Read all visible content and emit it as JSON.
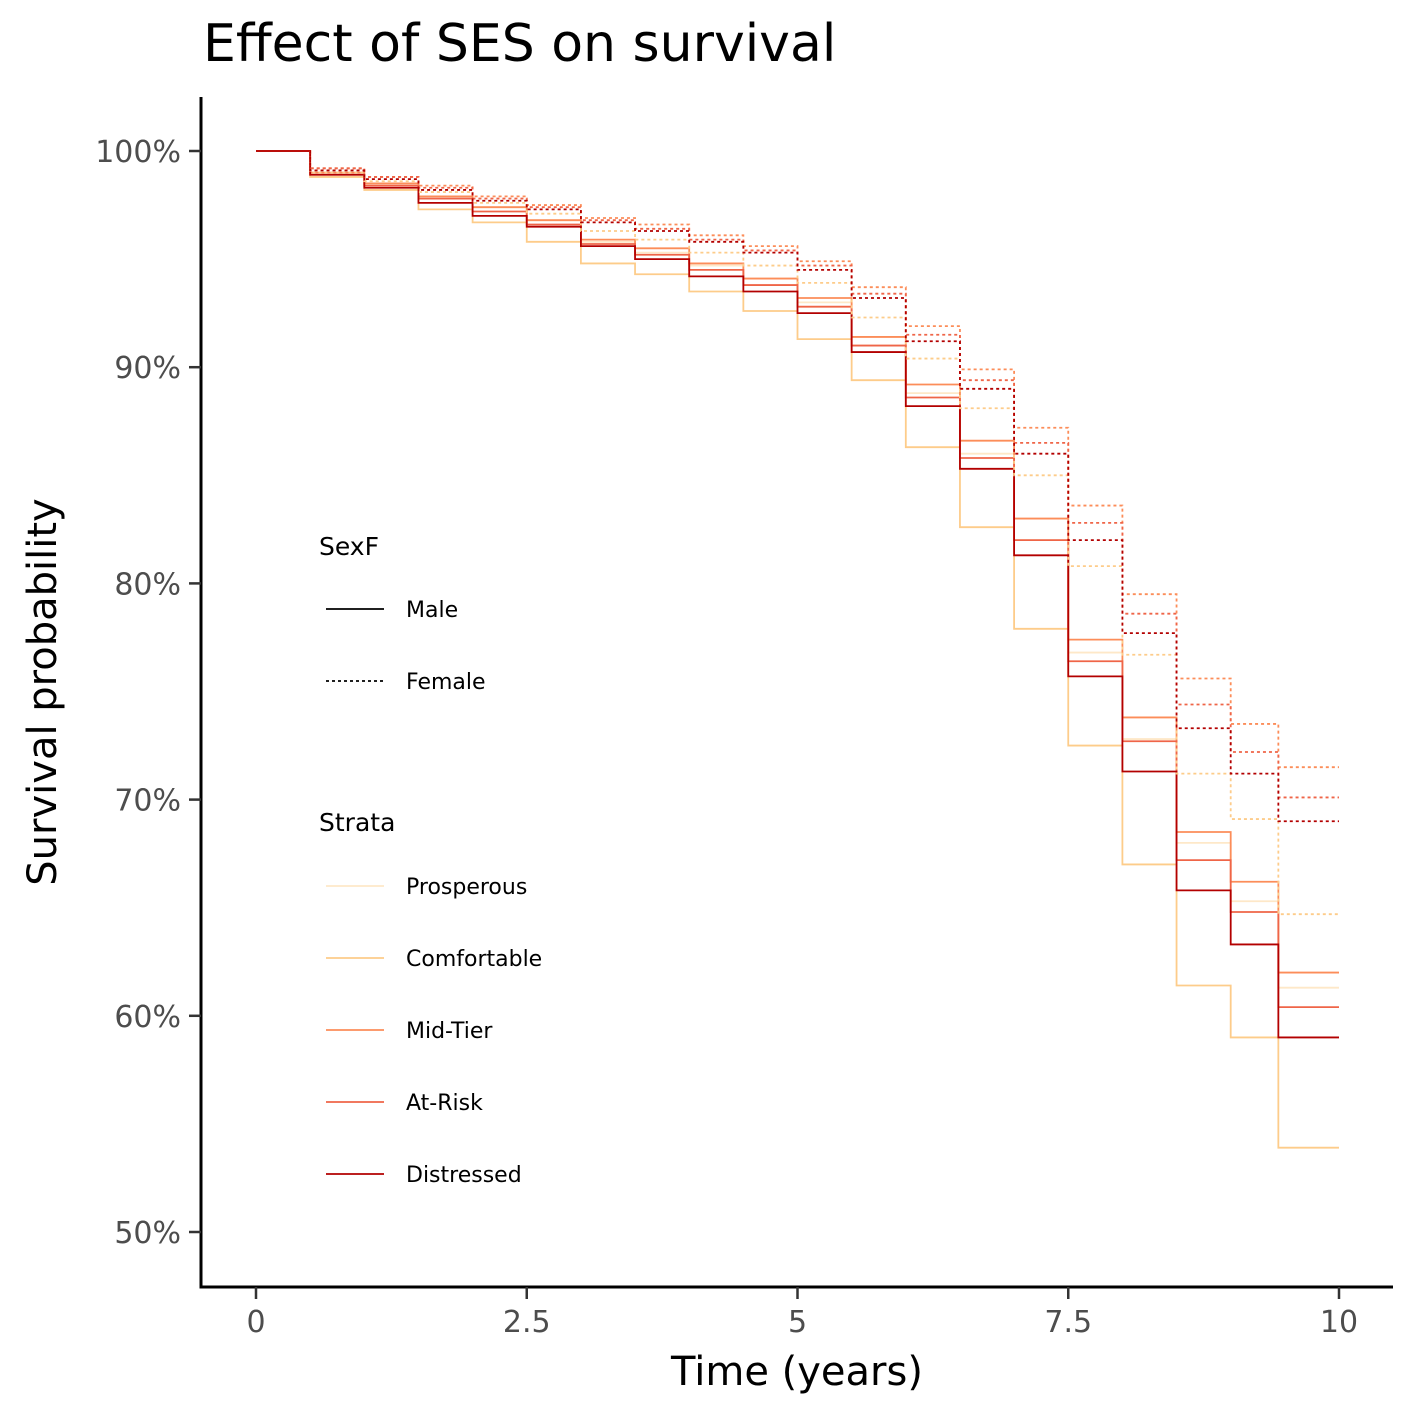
{
  "chart_data": {
    "type": "line",
    "title": "Effect of SES on survival",
    "xlabel": "Time (years)",
    "ylabel": "Survival probability",
    "xlim": [
      0,
      10
    ],
    "ylim": [
      0.5,
      1.0
    ],
    "x_ticks": [
      0,
      2.5,
      5,
      7.5,
      10
    ],
    "x_tick_labels": [
      "0",
      "2.5",
      "5",
      "7.5",
      "10"
    ],
    "y_ticks": [
      0.5,
      0.6,
      0.7,
      0.8,
      0.9,
      1.0
    ],
    "y_tick_labels": [
      "50%",
      "60%",
      "70%",
      "80%",
      "90%",
      "100%"
    ],
    "grid": false,
    "legend_position": "inside-left",
    "legend": {
      "linetype_title": "SexF",
      "linetypes": [
        {
          "label": "Male",
          "dash": "solid"
        },
        {
          "label": "Female",
          "dash": "dotted"
        }
      ],
      "color_title": "Strata",
      "strata": [
        {
          "label": "Prosperous",
          "color": "#fee8c8"
        },
        {
          "label": "Comfortable",
          "color": "#fdcc8a"
        },
        {
          "label": "Mid-Tier",
          "color": "#fc8d59"
        },
        {
          "label": "At-Risk",
          "color": "#ef6548"
        },
        {
          "label": "Distressed",
          "color": "#b30000"
        }
      ]
    },
    "series": [
      {
        "stratum": "Prosperous",
        "sex": "Male",
        "color": "#fee8c8",
        "dash": "solid",
        "x": [
          0,
          0.5,
          1.0,
          1.5,
          2.0,
          2.5,
          3.0,
          3.5,
          4.0,
          4.5,
          5.0,
          5.5,
          6.0,
          6.5,
          7.0,
          7.5,
          8.0,
          8.5,
          9.0,
          9.44,
          10.0
        ],
        "y": [
          1.0,
          0.99,
          0.985,
          0.979,
          0.974,
          0.968,
          0.958,
          0.953,
          0.947,
          0.941,
          0.93,
          0.91,
          0.888,
          0.86,
          0.82,
          0.768,
          0.728,
          0.68,
          0.653,
          0.613,
          0.613
        ]
      },
      {
        "stratum": "Comfortable",
        "sex": "Male",
        "color": "#fdcc8a",
        "dash": "solid",
        "x": [
          0,
          0.5,
          1.0,
          1.5,
          2.0,
          2.5,
          3.0,
          3.5,
          4.0,
          4.5,
          5.0,
          5.5,
          6.0,
          6.5,
          7.0,
          7.5,
          8.0,
          8.5,
          9.0,
          9.44,
          10.0
        ],
        "y": [
          1.0,
          0.988,
          0.982,
          0.973,
          0.967,
          0.958,
          0.948,
          0.943,
          0.935,
          0.926,
          0.913,
          0.894,
          0.863,
          0.826,
          0.779,
          0.725,
          0.67,
          0.614,
          0.59,
          0.539,
          0.539
        ]
      },
      {
        "stratum": "Mid-Tier",
        "sex": "Male",
        "color": "#fc8d59",
        "dash": "solid",
        "x": [
          0,
          0.5,
          1.0,
          1.5,
          2.0,
          2.5,
          3.0,
          3.5,
          4.0,
          4.5,
          5.0,
          5.5,
          6.0,
          6.5,
          7.0,
          7.5,
          8.0,
          8.5,
          9.0,
          9.44,
          10.0
        ],
        "y": [
          1.0,
          0.99,
          0.985,
          0.979,
          0.974,
          0.968,
          0.959,
          0.955,
          0.948,
          0.941,
          0.932,
          0.914,
          0.892,
          0.866,
          0.83,
          0.774,
          0.738,
          0.685,
          0.662,
          0.62,
          0.62
        ]
      },
      {
        "stratum": "At-Risk",
        "sex": "Male",
        "color": "#ef6548",
        "dash": "solid",
        "x": [
          0,
          0.5,
          1.0,
          1.5,
          2.0,
          2.5,
          3.0,
          3.5,
          4.0,
          4.5,
          5.0,
          5.5,
          6.0,
          6.5,
          7.0,
          7.5,
          8.0,
          8.5,
          9.0,
          9.44,
          10.0
        ],
        "y": [
          1.0,
          0.989,
          0.984,
          0.978,
          0.972,
          0.966,
          0.957,
          0.952,
          0.945,
          0.938,
          0.928,
          0.91,
          0.886,
          0.858,
          0.82,
          0.764,
          0.727,
          0.672,
          0.648,
          0.604,
          0.604
        ]
      },
      {
        "stratum": "Distressed",
        "sex": "Male",
        "color": "#b30000",
        "dash": "solid",
        "x": [
          0,
          0.5,
          1.0,
          1.5,
          2.0,
          2.5,
          3.0,
          3.5,
          4.0,
          4.5,
          5.0,
          5.5,
          6.0,
          6.5,
          7.0,
          7.5,
          8.0,
          8.5,
          9.0,
          9.44,
          10.0
        ],
        "y": [
          1.0,
          0.989,
          0.983,
          0.976,
          0.97,
          0.965,
          0.956,
          0.95,
          0.942,
          0.935,
          0.925,
          0.907,
          0.882,
          0.853,
          0.813,
          0.757,
          0.713,
          0.658,
          0.633,
          0.59,
          0.59
        ]
      },
      {
        "stratum": "Comfortable",
        "sex": "Female",
        "color": "#fdcc8a",
        "dash": "dotted",
        "x": [
          0,
          0.5,
          1.0,
          1.5,
          2.0,
          2.5,
          3.0,
          3.5,
          4.0,
          4.5,
          5.0,
          5.5,
          6.0,
          6.5,
          7.0,
          7.5,
          8.0,
          8.5,
          9.0,
          9.44,
          10.0
        ],
        "y": [
          1.0,
          0.99,
          0.986,
          0.981,
          0.976,
          0.971,
          0.963,
          0.959,
          0.953,
          0.947,
          0.939,
          0.923,
          0.904,
          0.881,
          0.85,
          0.808,
          0.767,
          0.712,
          0.691,
          0.647,
          0.647
        ]
      },
      {
        "stratum": "Mid-Tier",
        "sex": "Female",
        "color": "#fc8d59",
        "dash": "dotted",
        "x": [
          0,
          0.5,
          1.0,
          1.5,
          2.0,
          2.5,
          3.0,
          3.5,
          4.0,
          4.5,
          5.0,
          5.5,
          6.0,
          6.5,
          7.0,
          7.5,
          8.0,
          8.5,
          9.0,
          9.44,
          10.0
        ],
        "y": [
          1.0,
          0.992,
          0.988,
          0.984,
          0.979,
          0.975,
          0.969,
          0.966,
          0.961,
          0.956,
          0.949,
          0.937,
          0.919,
          0.899,
          0.872,
          0.836,
          0.795,
          0.756,
          0.735,
          0.715,
          0.715
        ]
      },
      {
        "stratum": "At-Risk",
        "sex": "Female",
        "color": "#ef6548",
        "dash": "dotted",
        "x": [
          0,
          0.5,
          1.0,
          1.5,
          2.0,
          2.5,
          3.0,
          3.5,
          4.0,
          4.5,
          5.0,
          5.5,
          6.0,
          6.5,
          7.0,
          7.5,
          8.0,
          8.5,
          9.0,
          9.44,
          10.0
        ],
        "y": [
          1.0,
          0.992,
          0.988,
          0.983,
          0.978,
          0.974,
          0.968,
          0.964,
          0.959,
          0.954,
          0.947,
          0.934,
          0.915,
          0.894,
          0.865,
          0.828,
          0.786,
          0.744,
          0.722,
          0.701,
          0.701
        ]
      },
      {
        "stratum": "Distressed",
        "sex": "Female",
        "color": "#b30000",
        "dash": "dotted",
        "x": [
          0,
          0.5,
          1.0,
          1.5,
          2.0,
          2.5,
          3.0,
          3.5,
          4.0,
          4.5,
          5.0,
          5.5,
          6.0,
          6.5,
          7.0,
          7.5,
          8.0,
          8.5,
          9.0,
          9.44,
          10.0
        ],
        "y": [
          1.0,
          0.991,
          0.987,
          0.982,
          0.977,
          0.973,
          0.967,
          0.963,
          0.958,
          0.953,
          0.945,
          0.932,
          0.912,
          0.89,
          0.86,
          0.82,
          0.777,
          0.733,
          0.712,
          0.69,
          0.69
        ]
      }
    ]
  }
}
